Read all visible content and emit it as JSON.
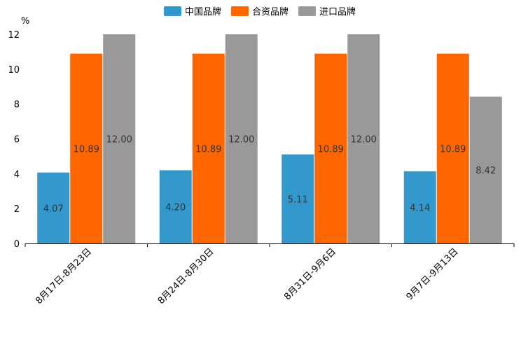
{
  "chart_data": {
    "type": "bar",
    "title": "",
    "xlabel": "",
    "ylabel": "%",
    "ylim": [
      0,
      12
    ],
    "yticks": [
      0,
      2,
      4,
      6,
      8,
      10,
      12
    ],
    "grid": false,
    "legend": "top-center",
    "categories": [
      "8月17日-8月23日",
      "8月24日-8月30日",
      "8月31日-9月6日",
      "9月7日-9月13日"
    ],
    "series": [
      {
        "name": "中国品牌",
        "color": "#3399cc",
        "values": [
          4.07,
          4.2,
          5.11,
          4.14
        ],
        "labels": [
          "4.07",
          "4.20",
          "5.11",
          "4.14"
        ]
      },
      {
        "name": "合资品牌",
        "color": "#ff6600",
        "values": [
          10.89,
          10.89,
          10.89,
          10.89
        ],
        "labels": [
          "10.89",
          "10.89",
          "10.89",
          "10.89"
        ]
      },
      {
        "name": "进口品牌",
        "color": "#999999",
        "values": [
          12.0,
          12.0,
          12.0,
          8.42
        ],
        "labels": [
          "12.00",
          "12.00",
          "12.00",
          "8.42"
        ]
      }
    ]
  }
}
